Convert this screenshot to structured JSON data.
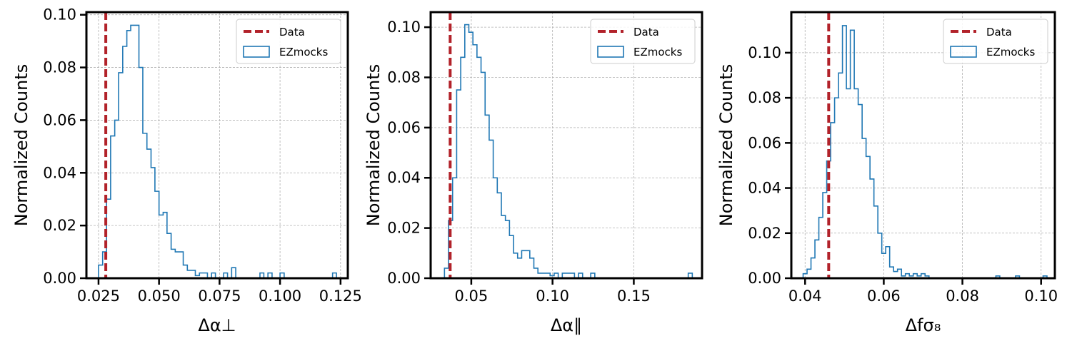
{
  "colors": {
    "data_line": "#b2222a",
    "hist": "#1f77b4",
    "grid": "#b0b0b0"
  },
  "chart_data": [
    {
      "type": "histogram",
      "xlabel": "Δα⊥",
      "ylabel": "Normalized Counts",
      "xlim": [
        0.02,
        0.128
      ],
      "ylim": [
        0,
        0.101
      ],
      "xticks": [
        0.025,
        0.05,
        0.075,
        0.1,
        0.125
      ],
      "xtick_labels": [
        "0.025",
        "0.050",
        "0.075",
        "0.100",
        "0.125"
      ],
      "yticks": [
        0.0,
        0.02,
        0.04,
        0.06,
        0.08,
        0.1
      ],
      "ytick_labels": [
        "0.00",
        "0.02",
        "0.04",
        "0.06",
        "0.08",
        "0.10"
      ],
      "grid": true,
      "legend_position": "top-right",
      "legend": [
        "Data",
        "EZmocks"
      ],
      "data_value": 0.028,
      "hist_edges": [
        0.025,
        0.0267,
        0.0283,
        0.03,
        0.0317,
        0.0333,
        0.035,
        0.0367,
        0.0383,
        0.04,
        0.0417,
        0.0433,
        0.045,
        0.0467,
        0.0483,
        0.05,
        0.0517,
        0.0533,
        0.055,
        0.0567,
        0.0583,
        0.06,
        0.0617,
        0.0633,
        0.065,
        0.0667,
        0.0683,
        0.07,
        0.0717,
        0.0733,
        0.075,
        0.0767,
        0.0783,
        0.08,
        0.0817,
        0.0833,
        0.085,
        0.0867,
        0.0883,
        0.09,
        0.0917,
        0.0933,
        0.095,
        0.0967,
        0.0983,
        0.1,
        0.1017,
        0.1033,
        0.105,
        0.1067,
        0.1083,
        0.11,
        0.1117,
        0.1133,
        0.115,
        0.1167,
        0.1183,
        0.12,
        0.1217,
        0.1233
      ],
      "hist_values": [
        0.005,
        0.01,
        0.03,
        0.054,
        0.06,
        0.078,
        0.088,
        0.094,
        0.096,
        0.096,
        0.08,
        0.055,
        0.049,
        0.042,
        0.033,
        0.024,
        0.025,
        0.017,
        0.011,
        0.01,
        0.01,
        0.005,
        0.003,
        0.003,
        0.001,
        0.002,
        0.002,
        0.0,
        0.002,
        0.0,
        0.0,
        0.002,
        0.0,
        0.004,
        0.0,
        0.0,
        0.0,
        0.0,
        0.0,
        0.0,
        0.002,
        0.0,
        0.002,
        0.0,
        0.0,
        0.002,
        0.0,
        0.0,
        0.0,
        0.0,
        0.0,
        0.0,
        0.0,
        0.0,
        0.0,
        0.0,
        0.0,
        0.0,
        0.002
      ]
    },
    {
      "type": "histogram",
      "xlabel": "Δα∥",
      "ylabel": "Normalized Counts",
      "xlim": [
        0.025,
        0.192
      ],
      "ylim": [
        0,
        0.106
      ],
      "xticks": [
        0.05,
        0.1,
        0.15
      ],
      "xtick_labels": [
        "0.05",
        "0.10",
        "0.15"
      ],
      "yticks": [
        0.0,
        0.02,
        0.04,
        0.06,
        0.08,
        0.1
      ],
      "ytick_labels": [
        "0.00",
        "0.02",
        "0.04",
        "0.06",
        "0.08",
        "0.10"
      ],
      "grid": true,
      "legend_position": "top-right",
      "legend": [
        "Data",
        "EZmocks"
      ],
      "data_value": 0.037,
      "hist_edges": [
        0.0335,
        0.036,
        0.0385,
        0.041,
        0.0435,
        0.046,
        0.0485,
        0.051,
        0.0535,
        0.056,
        0.0585,
        0.061,
        0.0635,
        0.066,
        0.0685,
        0.071,
        0.0735,
        0.076,
        0.0785,
        0.081,
        0.0835,
        0.086,
        0.0885,
        0.091,
        0.0935,
        0.096,
        0.0985,
        0.101,
        0.1035,
        0.106,
        0.1085,
        0.111,
        0.1135,
        0.116,
        0.1185,
        0.121,
        0.1235,
        0.126,
        0.1285,
        0.131,
        0.1335,
        0.136,
        0.1385,
        0.141,
        0.1435,
        0.146,
        0.1485,
        0.151,
        0.1535,
        0.156,
        0.1585,
        0.161,
        0.1635,
        0.166,
        0.1685,
        0.171,
        0.1735,
        0.176,
        0.1785,
        0.181,
        0.1835,
        0.186
      ],
      "hist_values": [
        0.004,
        0.023,
        0.04,
        0.075,
        0.088,
        0.101,
        0.098,
        0.093,
        0.088,
        0.082,
        0.065,
        0.055,
        0.04,
        0.034,
        0.025,
        0.023,
        0.017,
        0.01,
        0.008,
        0.011,
        0.011,
        0.008,
        0.004,
        0.002,
        0.002,
        0.002,
        0.001,
        0.002,
        0.0,
        0.002,
        0.002,
        0.002,
        0.0,
        0.002,
        0.0,
        0.0,
        0.002,
        0.0,
        0.0,
        0.0,
        0.0,
        0.0,
        0.0,
        0.0,
        0.0,
        0.0,
        0.0,
        0.0,
        0.0,
        0.0,
        0.0,
        0.0,
        0.0,
        0.0,
        0.0,
        0.0,
        0.0,
        0.0,
        0.0,
        0.0,
        0.002
      ]
    },
    {
      "type": "histogram",
      "xlabel": "Δfσ₈",
      "ylabel": "Normalized Counts",
      "xlim": [
        0.0365,
        0.1035
      ],
      "ylim": [
        0,
        0.118
      ],
      "xticks": [
        0.04,
        0.06,
        0.08,
        0.1
      ],
      "xtick_labels": [
        "0.04",
        "0.06",
        "0.08",
        "0.10"
      ],
      "yticks": [
        0.0,
        0.02,
        0.04,
        0.06,
        0.08,
        0.1
      ],
      "ytick_labels": [
        "0.00",
        "0.02",
        "0.04",
        "0.06",
        "0.08",
        "0.10"
      ],
      "grid": true,
      "legend_position": "top-right",
      "legend": [
        "Data",
        "EZmocks"
      ],
      "data_value": 0.046,
      "hist_edges": [
        0.0395,
        0.0405,
        0.0415,
        0.0425,
        0.0435,
        0.0445,
        0.0455,
        0.0465,
        0.0475,
        0.0485,
        0.0495,
        0.0505,
        0.0515,
        0.0525,
        0.0535,
        0.0545,
        0.0555,
        0.0565,
        0.0575,
        0.0585,
        0.0595,
        0.0605,
        0.0615,
        0.0625,
        0.0635,
        0.0645,
        0.0655,
        0.0665,
        0.0675,
        0.0685,
        0.0695,
        0.0705,
        0.0715,
        0.0725,
        0.0735,
        0.0745,
        0.0755,
        0.0765,
        0.0775,
        0.0785,
        0.0795,
        0.0805,
        0.0815,
        0.0825,
        0.0835,
        0.0845,
        0.0855,
        0.0865,
        0.0875,
        0.0885,
        0.0895,
        0.0905,
        0.0915,
        0.0925,
        0.0935,
        0.0945,
        0.0955,
        0.0965,
        0.0975,
        0.0985,
        0.0995,
        0.1005
      ],
      "hist_values": [
        0.002,
        0.004,
        0.009,
        0.017,
        0.027,
        0.038,
        0.052,
        0.069,
        0.08,
        0.091,
        0.112,
        0.084,
        0.11,
        0.084,
        0.077,
        0.062,
        0.054,
        0.044,
        0.032,
        0.02,
        0.011,
        0.014,
        0.005,
        0.003,
        0.004,
        0.001,
        0.002,
        0.001,
        0.002,
        0.001,
        0.002,
        0.001,
        0.0,
        0.0,
        0.0,
        0.0,
        0.0,
        0.0,
        0.0,
        0.0,
        0.0,
        0.0,
        0.0,
        0.0,
        0.0,
        0.0,
        0.0,
        0.0,
        0.0,
        0.001,
        0.0,
        0.0,
        0.0,
        0.0,
        0.001,
        0.0,
        0.0,
        0.0,
        0.0,
        0.0,
        0.0,
        0.001
      ]
    }
  ]
}
